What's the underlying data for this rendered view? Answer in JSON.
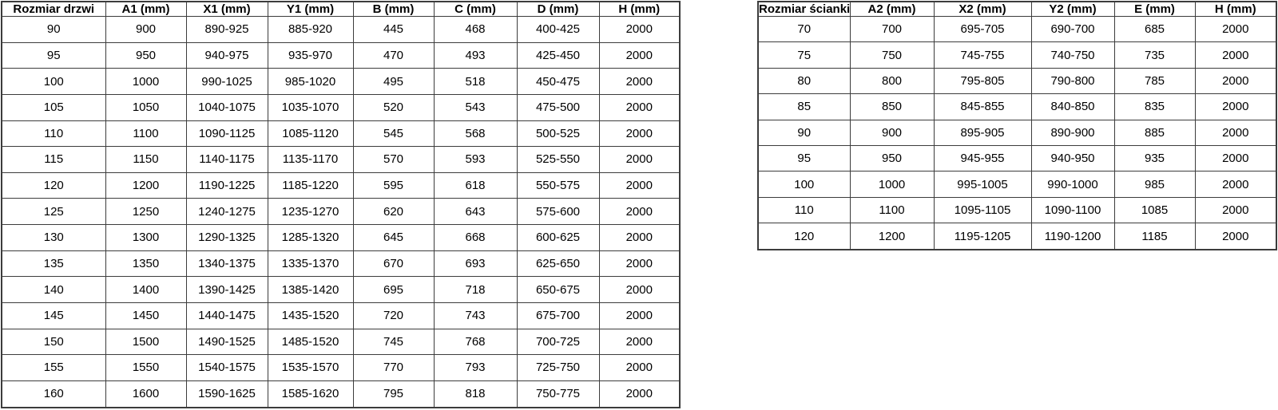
{
  "tables": [
    {
      "name": "door-sizes",
      "headers": [
        "Rozmiar drzwi",
        "A1 (mm)",
        "X1 (mm)",
        "Y1 (mm)",
        "B (mm)",
        "C (mm)",
        "D (mm)",
        "H (mm)"
      ],
      "rows": [
        [
          "90",
          "900",
          "890-925",
          "885-920",
          "445",
          "468",
          "400-425",
          "2000"
        ],
        [
          "95",
          "950",
          "940-975",
          "935-970",
          "470",
          "493",
          "425-450",
          "2000"
        ],
        [
          "100",
          "1000",
          "990-1025",
          "985-1020",
          "495",
          "518",
          "450-475",
          "2000"
        ],
        [
          "105",
          "1050",
          "1040-1075",
          "1035-1070",
          "520",
          "543",
          "475-500",
          "2000"
        ],
        [
          "110",
          "1100",
          "1090-1125",
          "1085-1120",
          "545",
          "568",
          "500-525",
          "2000"
        ],
        [
          "115",
          "1150",
          "1140-1175",
          "1135-1170",
          "570",
          "593",
          "525-550",
          "2000"
        ],
        [
          "120",
          "1200",
          "1190-1225",
          "1185-1220",
          "595",
          "618",
          "550-575",
          "2000"
        ],
        [
          "125",
          "1250",
          "1240-1275",
          "1235-1270",
          "620",
          "643",
          "575-600",
          "2000"
        ],
        [
          "130",
          "1300",
          "1290-1325",
          "1285-1320",
          "645",
          "668",
          "600-625",
          "2000"
        ],
        [
          "135",
          "1350",
          "1340-1375",
          "1335-1370",
          "670",
          "693",
          "625-650",
          "2000"
        ],
        [
          "140",
          "1400",
          "1390-1425",
          "1385-1420",
          "695",
          "718",
          "650-675",
          "2000"
        ],
        [
          "145",
          "1450",
          "1440-1475",
          "1435-1520",
          "720",
          "743",
          "675-700",
          "2000"
        ],
        [
          "150",
          "1500",
          "1490-1525",
          "1485-1520",
          "745",
          "768",
          "700-725",
          "2000"
        ],
        [
          "155",
          "1550",
          "1540-1575",
          "1535-1570",
          "770",
          "793",
          "725-750",
          "2000"
        ],
        [
          "160",
          "1600",
          "1590-1625",
          "1585-1620",
          "795",
          "818",
          "750-775",
          "2000"
        ]
      ]
    },
    {
      "name": "wall-sizes",
      "headers": [
        "Rozmiar ścianki",
        "A2 (mm)",
        "X2 (mm)",
        "Y2 (mm)",
        "E (mm)",
        "H (mm)"
      ],
      "rows": [
        [
          "70",
          "700",
          "695-705",
          "690-700",
          "685",
          "2000"
        ],
        [
          "75",
          "750",
          "745-755",
          "740-750",
          "735",
          "2000"
        ],
        [
          "80",
          "800",
          "795-805",
          "790-800",
          "785",
          "2000"
        ],
        [
          "85",
          "850",
          "845-855",
          "840-850",
          "835",
          "2000"
        ],
        [
          "90",
          "900",
          "895-905",
          "890-900",
          "885",
          "2000"
        ],
        [
          "95",
          "950",
          "945-955",
          "940-950",
          "935",
          "2000"
        ],
        [
          "100",
          "1000",
          "995-1005",
          "990-1000",
          "985",
          "2000"
        ],
        [
          "110",
          "1100",
          "1095-1105",
          "1090-1100",
          "1085",
          "2000"
        ],
        [
          "120",
          "1200",
          "1195-1205",
          "1190-1200",
          "1185",
          "2000"
        ]
      ]
    }
  ],
  "colors": {
    "grid_border": "#3c3c3c",
    "text": "#000000",
    "background": "#ffffff"
  }
}
